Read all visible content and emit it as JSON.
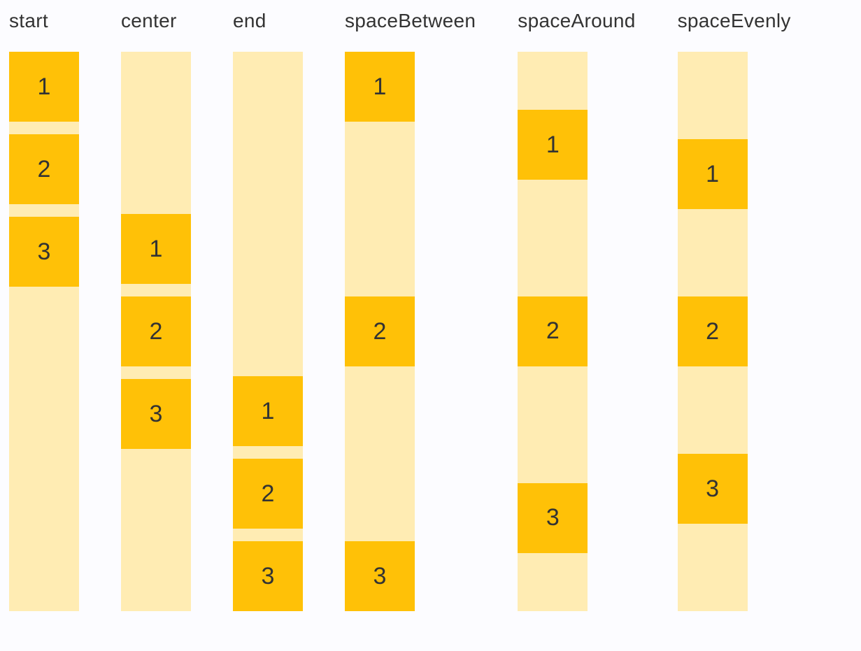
{
  "page": {
    "background": "#FCFCFF"
  },
  "colors": {
    "box_fill": "#FFC107",
    "track_fill": "#FFECB3",
    "label_text": "#333333",
    "number_text": "#333333"
  },
  "columns": [
    {
      "label": "start",
      "justify": "flex-start",
      "gap": 18,
      "items": [
        "1",
        "2",
        "3"
      ]
    },
    {
      "label": "center",
      "justify": "center",
      "gap": 18,
      "items": [
        "1",
        "2",
        "3"
      ]
    },
    {
      "label": "end",
      "justify": "flex-end",
      "gap": 18,
      "items": [
        "1",
        "2",
        "3"
      ]
    },
    {
      "label": "spaceBetween",
      "justify": "space-between",
      "gap": 0,
      "items": [
        "1",
        "2",
        "3"
      ]
    },
    {
      "label": "spaceAround",
      "justify": "space-around",
      "gap": 0,
      "items": [
        "1",
        "2",
        "3"
      ]
    },
    {
      "label": "spaceEvenly",
      "justify": "space-evenly",
      "gap": 0,
      "items": [
        "1",
        "2",
        "3"
      ]
    }
  ]
}
